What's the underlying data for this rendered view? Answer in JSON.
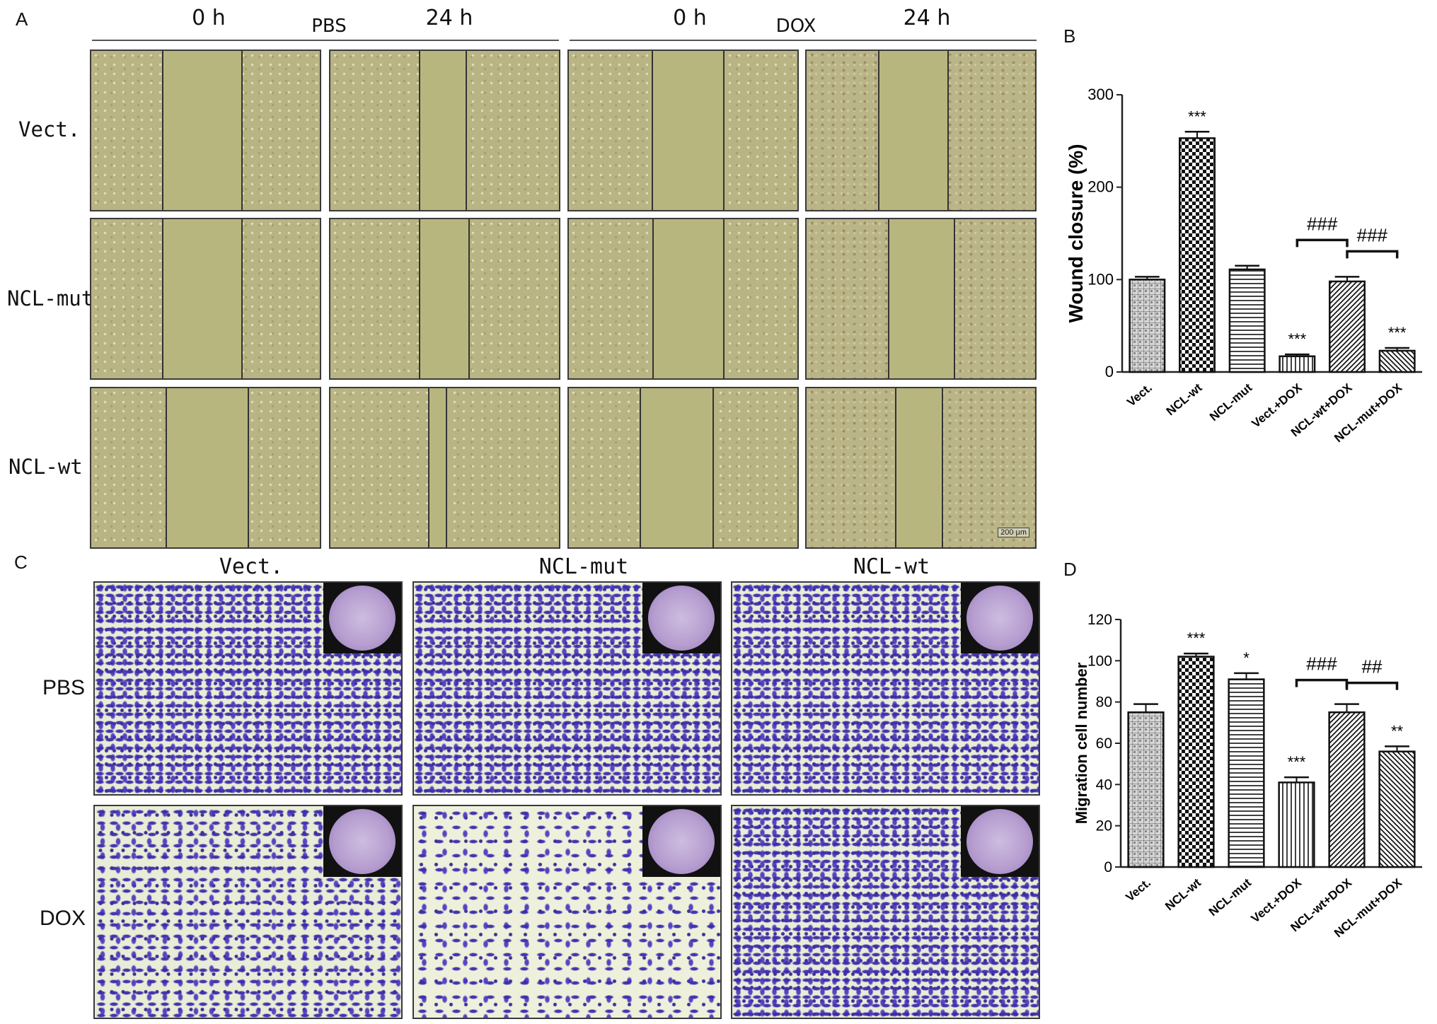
{
  "panels": {
    "a": "A",
    "b": "B",
    "c": "C",
    "d": "D"
  },
  "panel_a": {
    "groups": [
      "PBS",
      "DOX"
    ],
    "times": [
      "0 h",
      "24 h",
      "0 h",
      "24 h"
    ],
    "rows": [
      "Vect.",
      "NCL-mut",
      "NCL-wt"
    ],
    "scale_bar": "200 μm"
  },
  "panel_c": {
    "columns": [
      "Vect.",
      "NCL-mut",
      "NCL-wt"
    ],
    "rows": [
      "PBS",
      "DOX"
    ]
  },
  "chart_data": [
    {
      "type": "bar",
      "panel": "B",
      "ylabel": "Wound closure (%)",
      "categories": [
        "Vect.",
        "NCL-wt",
        "NCL-mut",
        "Vect.+DOX",
        "NCL-wt+DOX",
        "NCL-mut+DOX"
      ],
      "values": [
        100,
        253,
        111,
        17,
        98,
        23
      ],
      "errors": [
        3,
        7,
        4,
        2,
        5,
        3
      ],
      "significance": [
        "",
        "***",
        "",
        "***",
        "",
        "***"
      ],
      "comparisons": [
        {
          "from": 3,
          "to": 4,
          "label": "###"
        },
        {
          "from": 4,
          "to": 5,
          "label": "###"
        }
      ],
      "ylim": [
        0,
        300
      ],
      "yticks": [
        0,
        100,
        200,
        300
      ],
      "patterns": [
        "grid",
        "checker",
        "hlines",
        "vlines",
        "diag",
        "diag-rev"
      ]
    },
    {
      "type": "bar",
      "panel": "D",
      "ylabel": "Migration cell number",
      "categories": [
        "Vect.",
        "NCL-wt",
        "NCL-mut",
        "Vect.+DOX",
        "NCL-wt+DOX",
        "NCL-mut+DOX"
      ],
      "values": [
        75,
        102,
        91,
        41,
        75,
        56
      ],
      "errors": [
        4,
        1.5,
        3,
        2.5,
        4,
        2.5
      ],
      "significance": [
        "",
        "***",
        "*",
        "***",
        "",
        "**"
      ],
      "comparisons": [
        {
          "from": 3,
          "to": 4,
          "label": "###"
        },
        {
          "from": 4,
          "to": 5,
          "label": "##"
        }
      ],
      "ylim": [
        0,
        120
      ],
      "yticks": [
        0,
        20,
        40,
        60,
        80,
        100,
        120
      ],
      "patterns": [
        "grid",
        "checker",
        "hlines",
        "vlines",
        "diag",
        "diag-rev"
      ]
    }
  ]
}
